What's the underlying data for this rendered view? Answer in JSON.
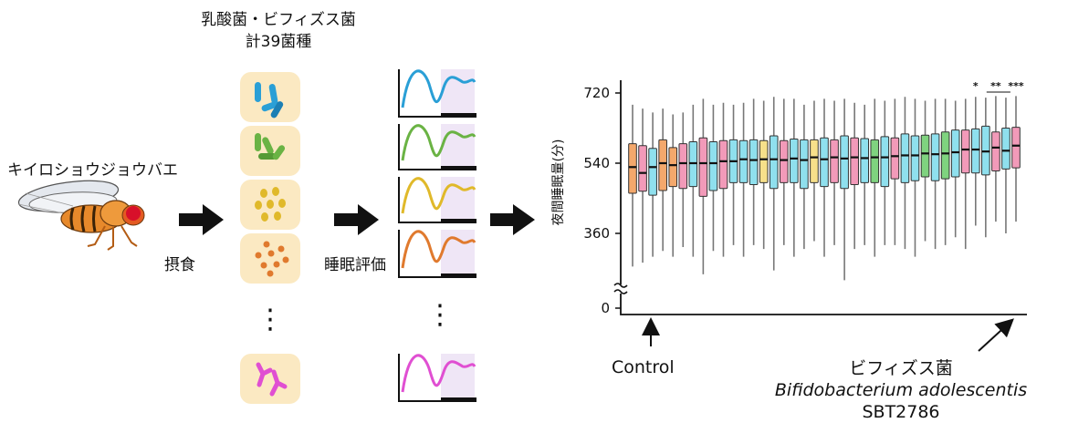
{
  "labels": {
    "fly": "キイロショウジョウバエ",
    "bacteria_title_1": "乳酸菌・ビフィズス菌",
    "bacteria_title_2": "計39菌種",
    "feeding": "摂食",
    "sleep_eval": "睡眠評価",
    "control": "Control",
    "bifido_jp": "ビフィズス菌",
    "bifido_sci": "Bifidobacterium adolescentis",
    "strain": "SBT2786",
    "dots": "⋮"
  },
  "colors": {
    "tile_bg": "#fbe9c2",
    "blue": "#2a9fd6",
    "green": "#6ab344",
    "yellow": "#e0b92a",
    "orange": "#e07a2e",
    "magenta": "#e04fd2",
    "purple_shade": "#efe6f6",
    "box_orange": "#f4a86c",
    "box_pink": "#f29ab9",
    "box_cyan": "#8fe0ee",
    "box_yellow": "#f7e08a",
    "box_green": "#7fd37f"
  },
  "bacteria_tiles": [
    {
      "name": "blue-rods",
      "color": "blue"
    },
    {
      "name": "green-rods",
      "color": "green"
    },
    {
      "name": "yellow-cocci",
      "color": "yellow"
    },
    {
      "name": "orange-cocci",
      "color": "orange"
    },
    {
      "name": "magenta-branched",
      "color": "magenta"
    }
  ],
  "chart_data": {
    "type": "boxplot",
    "ylabel": "夜間睡眠量(分)",
    "yticks": [
      0,
      360,
      540,
      720
    ],
    "ylim_break": true,
    "significance": [
      "*",
      "**",
      "***"
    ],
    "boxes": [
      {
        "color": "box_orange",
        "median": 530,
        "q1": 463,
        "q3": 590,
        "min": 275,
        "max": 690
      },
      {
        "color": "box_pink",
        "median": 515,
        "q1": 468,
        "q3": 585,
        "min": 285,
        "max": 680
      },
      {
        "color": "box_cyan",
        "median": 530,
        "q1": 458,
        "q3": 578,
        "min": 300,
        "max": 670
      },
      {
        "color": "box_orange",
        "median": 540,
        "q1": 470,
        "q3": 600,
        "min": 315,
        "max": 680
      },
      {
        "color": "box_orange",
        "median": 535,
        "q1": 480,
        "q3": 580,
        "min": 300,
        "max": 665
      },
      {
        "color": "box_pink",
        "median": 540,
        "q1": 475,
        "q3": 590,
        "min": 325,
        "max": 670
      },
      {
        "color": "box_cyan",
        "median": 540,
        "q1": 480,
        "q3": 595,
        "min": 300,
        "max": 690
      },
      {
        "color": "box_pink",
        "median": 540,
        "q1": 455,
        "q3": 605,
        "min": 255,
        "max": 705
      },
      {
        "color": "box_cyan",
        "median": 540,
        "q1": 470,
        "q3": 595,
        "min": 315,
        "max": 690
      },
      {
        "color": "box_pink",
        "median": 545,
        "q1": 475,
        "q3": 598,
        "min": 300,
        "max": 695
      },
      {
        "color": "box_cyan",
        "median": 545,
        "q1": 490,
        "q3": 600,
        "min": 330,
        "max": 690
      },
      {
        "color": "box_cyan",
        "median": 550,
        "q1": 490,
        "q3": 598,
        "min": 300,
        "max": 695
      },
      {
        "color": "box_cyan",
        "median": 548,
        "q1": 485,
        "q3": 600,
        "min": 330,
        "max": 705
      },
      {
        "color": "box_yellow",
        "median": 550,
        "q1": 490,
        "q3": 598,
        "min": 320,
        "max": 700
      },
      {
        "color": "box_cyan",
        "median": 550,
        "q1": 475,
        "q3": 610,
        "min": 265,
        "max": 710
      },
      {
        "color": "box_pink",
        "median": 548,
        "q1": 490,
        "q3": 598,
        "min": 330,
        "max": 705
      },
      {
        "color": "box_cyan",
        "median": 552,
        "q1": 490,
        "q3": 602,
        "min": 300,
        "max": 705
      },
      {
        "color": "box_cyan",
        "median": 548,
        "q1": 475,
        "q3": 600,
        "min": 320,
        "max": 690
      },
      {
        "color": "box_yellow",
        "median": 555,
        "q1": 490,
        "q3": 600,
        "min": 340,
        "max": 700
      },
      {
        "color": "box_cyan",
        "median": 550,
        "q1": 480,
        "q3": 605,
        "min": 300,
        "max": 705
      },
      {
        "color": "box_pink",
        "median": 555,
        "q1": 490,
        "q3": 600,
        "min": 330,
        "max": 700
      },
      {
        "color": "box_cyan",
        "median": 552,
        "q1": 475,
        "q3": 610,
        "min": 240,
        "max": 705
      },
      {
        "color": "box_pink",
        "median": 555,
        "q1": 485,
        "q3": 605,
        "min": 320,
        "max": 695
      },
      {
        "color": "box_cyan",
        "median": 553,
        "q1": 490,
        "q3": 603,
        "min": 330,
        "max": 690
      },
      {
        "color": "box_green",
        "median": 555,
        "q1": 490,
        "q3": 600,
        "min": 300,
        "max": 705
      },
      {
        "color": "box_cyan",
        "median": 555,
        "q1": 480,
        "q3": 608,
        "min": 330,
        "max": 700
      },
      {
        "color": "box_pink",
        "median": 558,
        "q1": 500,
        "q3": 605,
        "min": 330,
        "max": 705
      },
      {
        "color": "box_cyan",
        "median": 560,
        "q1": 490,
        "q3": 615,
        "min": 320,
        "max": 710
      },
      {
        "color": "box_cyan",
        "median": 560,
        "q1": 495,
        "q3": 610,
        "min": 300,
        "max": 705
      },
      {
        "color": "box_green",
        "median": 565,
        "q1": 505,
        "q3": 612,
        "min": 340,
        "max": 700
      },
      {
        "color": "box_cyan",
        "median": 563,
        "q1": 495,
        "q3": 615,
        "min": 320,
        "max": 705
      },
      {
        "color": "box_green",
        "median": 565,
        "q1": 500,
        "q3": 620,
        "min": 330,
        "max": 705
      },
      {
        "color": "box_cyan",
        "median": 568,
        "q1": 505,
        "q3": 625,
        "min": 350,
        "max": 700
      },
      {
        "color": "box_pink",
        "median": 575,
        "q1": 515,
        "q3": 625,
        "min": 320,
        "max": 705
      },
      {
        "color": "box_cyan",
        "median": 575,
        "q1": 515,
        "q3": 628,
        "min": 380,
        "max": 710
      },
      {
        "color": "box_cyan",
        "median": 570,
        "q1": 510,
        "q3": 635,
        "min": 350,
        "max": 708
      },
      {
        "color": "box_pink",
        "median": 580,
        "q1": 520,
        "q3": 620,
        "min": 390,
        "max": 712
      },
      {
        "color": "box_cyan",
        "median": 572,
        "q1": 525,
        "q3": 630,
        "min": 360,
        "max": 708
      },
      {
        "color": "box_pink",
        "median": 585,
        "q1": 528,
        "q3": 632,
        "min": 390,
        "max": 712
      }
    ]
  }
}
